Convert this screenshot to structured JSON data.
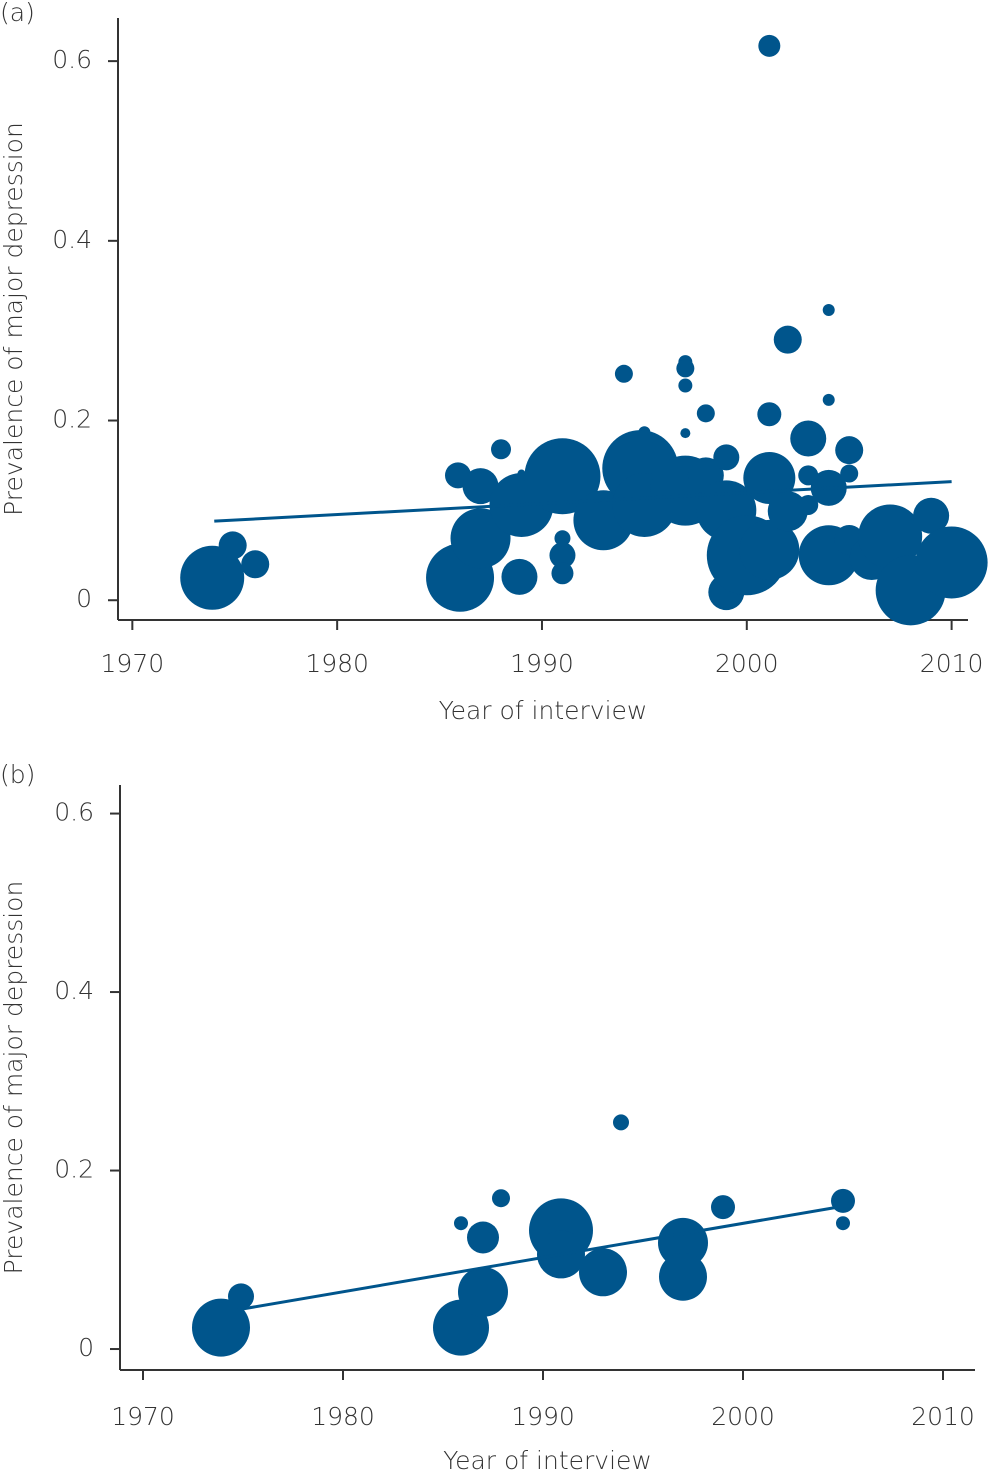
{
  "chart_data": [
    {
      "type": "scatter",
      "panel_label": "(a)",
      "x_label": "Year of interview",
      "y_label": "Prevalence of major depression",
      "color": "#00558c",
      "xlim": [
        1969.3,
        2010.8
      ],
      "ylim": [
        -0.022,
        0.648
      ],
      "xticks": [
        1970,
        1980,
        1990,
        2000,
        2010
      ],
      "yticks": [
        0,
        0.2,
        0.4,
        0.6
      ],
      "x": [
        1973.9,
        1974.9,
        1976.0,
        1986.0,
        1985.9,
        1987.0,
        1987.0,
        1988.0,
        1989.0,
        1988.9,
        1989.0,
        1991.0,
        1991.0,
        1991.0,
        1991.0,
        1993.0,
        1994.0,
        1995.0,
        1994.8,
        1995.0,
        1997.0,
        1997.0,
        1997.0,
        1997.0,
        1997.0,
        1998.0,
        1998.0,
        1999.0,
        1999.0,
        1999.0,
        2000.0,
        2001.1,
        2001.1,
        2001.1,
        2001.1,
        2002.0,
        2002.0,
        2003.0,
        2003.0,
        2003.0,
        2004.0,
        2004.0,
        2004.0,
        2004.0,
        2005.0,
        2005.0,
        2005.0,
        2006.1,
        2007.0,
        2008.0,
        2009.0,
        2010.0
      ],
      "y": [
        0.025,
        0.061,
        0.04,
        0.025,
        0.139,
        0.127,
        0.069,
        0.168,
        0.141,
        0.026,
        0.106,
        0.138,
        0.05,
        0.03,
        0.069,
        0.089,
        0.252,
        0.187,
        0.147,
        0.106,
        0.265,
        0.258,
        0.239,
        0.186,
        0.122,
        0.208,
        0.139,
        0.1,
        0.159,
        0.009,
        0.05,
        0.617,
        0.207,
        0.136,
        0.056,
        0.29,
        0.099,
        0.18,
        0.139,
        0.106,
        0.323,
        0.223,
        0.125,
        0.05,
        0.167,
        0.141,
        0.067,
        0.047,
        0.071,
        0.011,
        0.094,
        0.042
      ],
      "sizes": [
        32,
        14,
        14,
        34,
        13,
        18,
        30,
        10,
        4,
        18,
        32,
        38,
        13,
        11,
        8,
        30,
        9,
        6,
        38,
        32,
        7,
        9,
        7,
        5,
        35,
        9,
        18,
        30,
        13,
        18,
        40,
        11,
        12,
        26,
        30,
        14,
        20,
        18,
        10,
        10,
        6,
        6,
        18,
        30,
        14,
        9,
        15,
        22,
        32,
        35,
        18,
        36
      ],
      "trend": {
        "x": [
          1974,
          2010
        ],
        "y": [
          0.088,
          0.132
        ]
      }
    },
    {
      "type": "scatter",
      "panel_label": "(b)",
      "x_label": "Year of interview",
      "y_label": "Prevalence of major depression",
      "color": "#00558c",
      "xlim": [
        1968.85,
        2011.6
      ],
      "ylim": [
        -0.0235,
        0.632
      ],
      "xticks": [
        1970,
        1980,
        1990,
        2000,
        2010
      ],
      "yticks": [
        0,
        0.2,
        0.4,
        0.6
      ],
      "x": [
        1973.9,
        1974.9,
        1985.9,
        1985.9,
        1987.0,
        1987.0,
        1987.9,
        1990.9,
        1990.9,
        1993.0,
        1993.9,
        1997.0,
        1997.0,
        1999.0,
        2005.0,
        2005.0
      ],
      "y": [
        0.024,
        0.059,
        0.024,
        0.141,
        0.125,
        0.064,
        0.169,
        0.133,
        0.106,
        0.086,
        0.254,
        0.119,
        0.081,
        0.159,
        0.166,
        0.141
      ],
      "sizes": [
        29,
        13,
        28,
        7,
        16,
        25,
        9,
        32,
        24,
        24,
        8,
        25,
        24,
        12,
        12,
        7
      ],
      "trend": {
        "x": [
          1975,
          2005
        ],
        "y": [
          0.045,
          0.16
        ]
      }
    }
  ]
}
